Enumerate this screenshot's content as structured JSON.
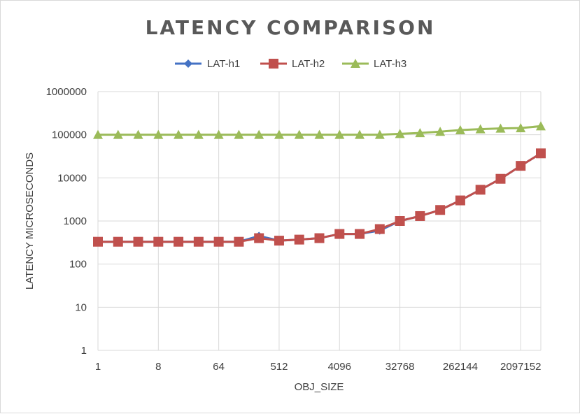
{
  "chart_data": {
    "type": "line",
    "title": "LATENCY  COMPARISON",
    "xlabel": "OBJ_SIZE",
    "ylabel": "LATENCY MICROSECONDS",
    "y_scale": "log",
    "ylim": [
      1,
      1000000
    ],
    "y_ticks": [
      "1",
      "10",
      "100",
      "1000",
      "10000",
      "100000",
      "1000000"
    ],
    "x": [
      1,
      2,
      4,
      8,
      16,
      32,
      64,
      128,
      256,
      512,
      1024,
      2048,
      4096,
      8192,
      16384,
      32768,
      65536,
      131072,
      262144,
      524288,
      1048576,
      2097152,
      4194304
    ],
    "x_tick_labels": [
      "1",
      "8",
      "64",
      "512",
      "4096",
      "32768",
      "262144",
      "2097152"
    ],
    "x_tick_values": [
      1,
      8,
      64,
      512,
      4096,
      32768,
      262144,
      2097152
    ],
    "grid": "vertical and horizontal",
    "legend_position": "top",
    "series": [
      {
        "name": "LAT-h1",
        "color": "#4472c4",
        "marker": "diamond",
        "values": [
          330,
          330,
          330,
          330,
          330,
          330,
          330,
          330,
          450,
          350,
          370,
          400,
          500,
          500,
          600,
          1000,
          1300,
          1800,
          3000,
          5300,
          9500,
          19000,
          37000
        ]
      },
      {
        "name": "LAT-h2",
        "color": "#c0504d",
        "marker": "square",
        "values": [
          330,
          330,
          330,
          330,
          330,
          330,
          330,
          330,
          400,
          350,
          370,
          400,
          500,
          500,
          650,
          1000,
          1300,
          1800,
          3000,
          5300,
          9500,
          19000,
          37000
        ]
      },
      {
        "name": "LAT-h3",
        "color": "#9bbb59",
        "marker": "triangle",
        "values": [
          100000,
          100000,
          100000,
          100000,
          100000,
          100000,
          100000,
          100000,
          100000,
          100000,
          100000,
          100000,
          100000,
          100000,
          100000,
          105000,
          110000,
          118000,
          128000,
          135000,
          140000,
          143000,
          158000
        ]
      }
    ]
  }
}
